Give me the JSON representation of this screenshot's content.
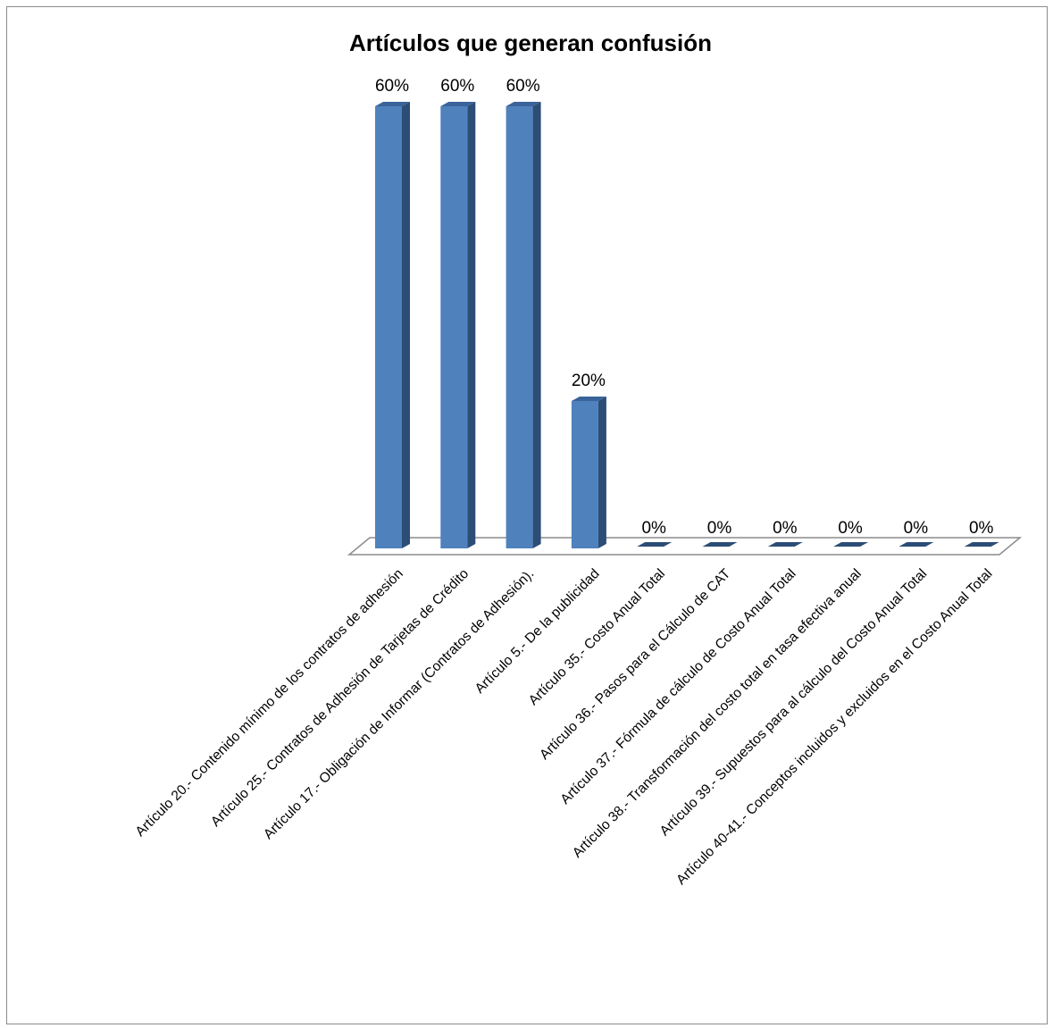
{
  "chart_data": {
    "type": "bar",
    "title": "Artículos que generan confusión",
    "xlabel": "",
    "ylabel": "",
    "ylim": [
      0,
      0.6
    ],
    "grid": false,
    "legend": "none",
    "categories": [
      "Artículo 20.- Contenido mínimo de los contratos de adhesión",
      "Artículo 25.- Contratos de Adhesión de Tarjetas de Crédito",
      "Artículo 17.- Obligación de Informar (Contratos de Adhesión).",
      "Artículo 5.- De la publicidad",
      "Artículo 35.- Costo Anual Total",
      "Artículo 36.- Pasos para el Cálculo de CAT",
      "Artículo 37.- Fórmula de cálculo de Costo Anual Total",
      "Artículo 38.- Transformación del costo total en tasa efectiva anual",
      "Artículo 39.- Supuestos para al cálculo del Costo Anual Total",
      "Artículo 40-41.- Conceptos incluidos y excluidos en el Costo Anual Total"
    ],
    "values": [
      0.6,
      0.6,
      0.6,
      0.2,
      0,
      0,
      0,
      0,
      0,
      0
    ],
    "data_labels": [
      "60%",
      "60%",
      "60%",
      "20%",
      "0%",
      "0%",
      "0%",
      "0%",
      "0%",
      "0%"
    ],
    "colors": {
      "bar_front": "#4F81BD",
      "bar_side": "#2C4D75",
      "bar_top": "#3A6399",
      "floor_stroke": "#8C8C8C"
    }
  }
}
